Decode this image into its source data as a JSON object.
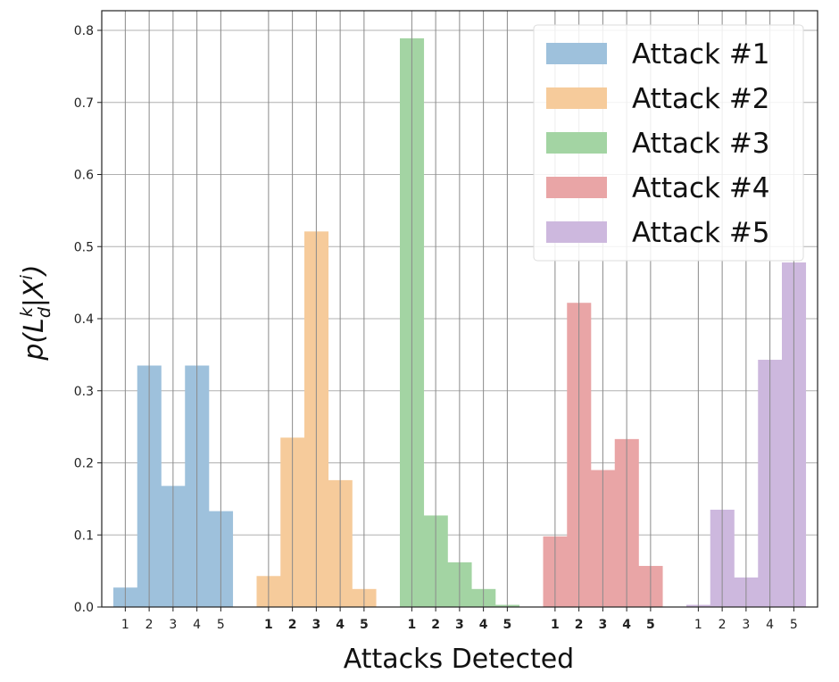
{
  "chart_data": {
    "type": "bar",
    "xlabel": "Attacks Detected",
    "ylabel_parts": {
      "base": "p(L",
      "sub": "d",
      "sup": "k",
      "mid": "|X",
      "sup2": "i",
      "end": ")"
    },
    "ylim": [
      0,
      0.82
    ],
    "yticks": [
      "0.0",
      "0.1",
      "0.2",
      "0.3",
      "0.4",
      "0.5",
      "0.6",
      "0.7",
      "0.8"
    ],
    "grid": true,
    "legend_placement": "top-right",
    "categories": [
      "1",
      "2",
      "3",
      "4",
      "5"
    ],
    "series": [
      {
        "name": "Attack #1",
        "color": "#9ec1dc",
        "values": [
          0.027,
          0.335,
          0.168,
          0.335,
          0.133
        ]
      },
      {
        "name": "Attack #2",
        "color": "#f6cb9b",
        "values": [
          0.043,
          0.235,
          0.521,
          0.176,
          0.025
        ]
      },
      {
        "name": "Attack #3",
        "color": "#a3d4a3",
        "values": [
          0.789,
          0.127,
          0.062,
          0.025,
          0.003
        ]
      },
      {
        "name": "Attack #4",
        "color": "#e9a5a6",
        "values": [
          0.098,
          0.422,
          0.19,
          0.233,
          0.057
        ]
      },
      {
        "name": "Attack #5",
        "color": "#cdb8de",
        "values": [
          0.003,
          0.135,
          0.041,
          0.343,
          0.478
        ]
      }
    ]
  }
}
